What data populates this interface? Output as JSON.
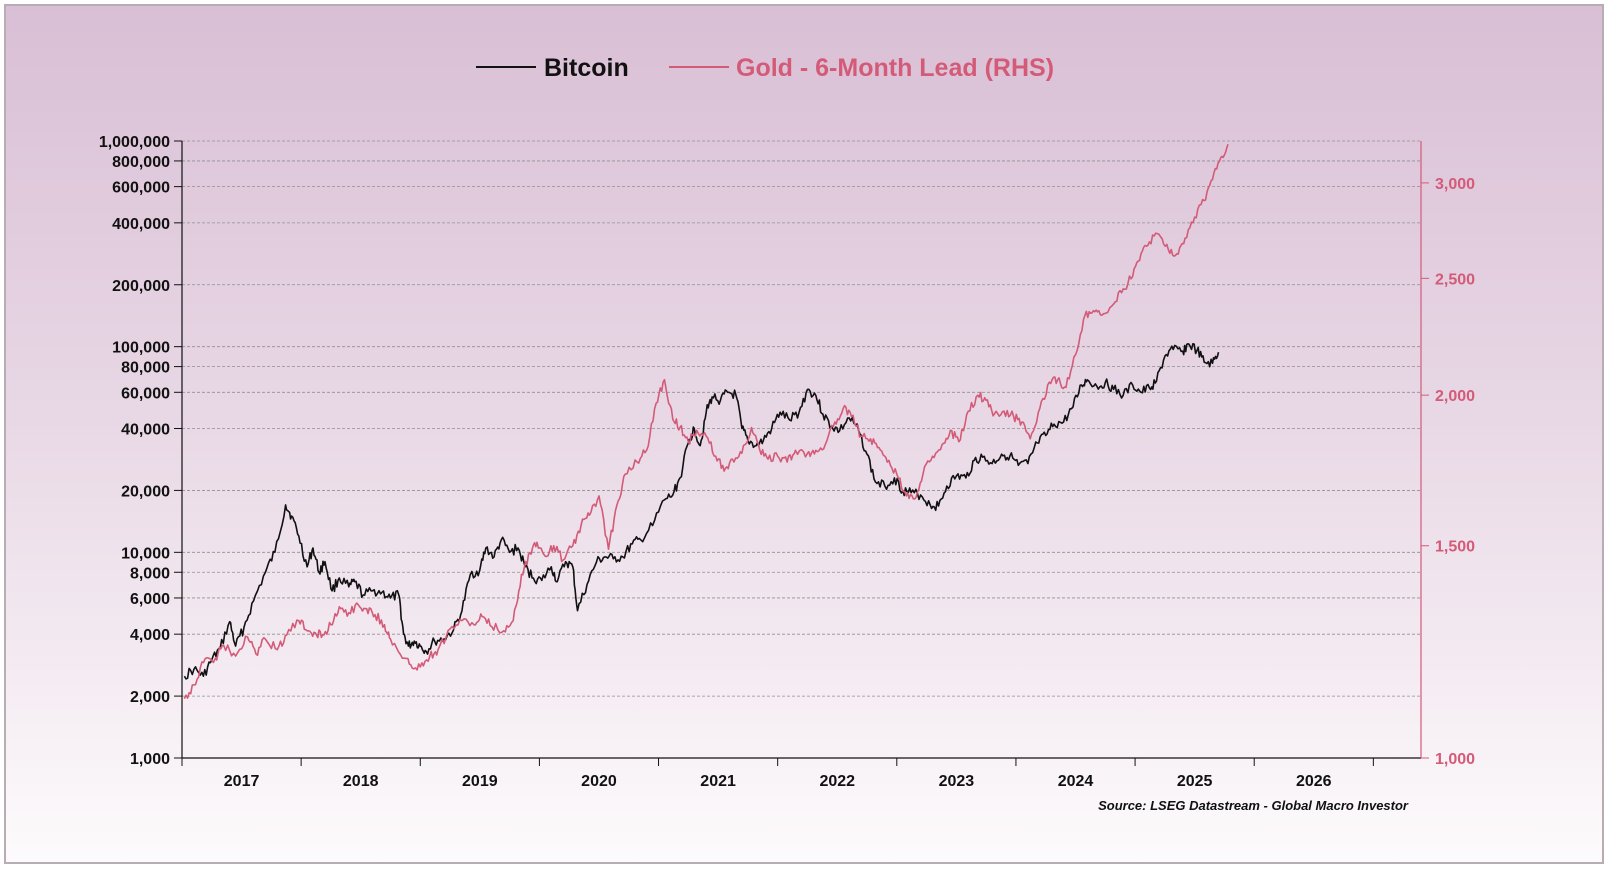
{
  "chart_data": {
    "type": "line",
    "title": "",
    "source": "Source: LSEG Datastream - Global Macro Investor",
    "colors": {
      "bitcoin": "#111111",
      "gold": "#d35b78",
      "grid": "#8f8f8f"
    },
    "x_axis": {
      "range": [
        2016.6,
        2027.0
      ],
      "ticks": [
        2016.6,
        2017.6,
        2018.6,
        2019.6,
        2020.6,
        2021.6,
        2022.6,
        2023.6,
        2024.6,
        2025.6,
        2026.6
      ],
      "labels": [
        {
          "text": "2017",
          "x": 2017.1
        },
        {
          "text": "2018",
          "x": 2018.1
        },
        {
          "text": "2019",
          "x": 2019.1
        },
        {
          "text": "2020",
          "x": 2020.1
        },
        {
          "text": "2021",
          "x": 2021.1
        },
        {
          "text": "2022",
          "x": 2022.1
        },
        {
          "text": "2023",
          "x": 2023.1
        },
        {
          "text": "2024",
          "x": 2024.1
        },
        {
          "text": "2025",
          "x": 2025.1
        },
        {
          "text": "2026",
          "x": 2026.1
        }
      ]
    },
    "y_left": {
      "scale": "log",
      "range": [
        1000,
        1000000
      ],
      "ticks": [
        1000,
        2000,
        4000,
        6000,
        8000,
        10000,
        20000,
        40000,
        60000,
        80000,
        100000,
        200000,
        400000,
        600000,
        800000,
        1000000
      ],
      "labels": [
        "1,000",
        "2,000",
        "4,000",
        "6,000",
        "8,000",
        "10,000",
        "20,000",
        "40,000",
        "60,000",
        "80,000",
        "100,000",
        "200,000",
        "400,000",
        "600,000",
        "800,000",
        "1,000,000"
      ]
    },
    "y_right": {
      "scale": "log",
      "range": [
        1000,
        3250
      ],
      "ticks": [
        1000,
        1500,
        2000,
        2500,
        3000
      ],
      "labels": [
        "1,000",
        "1,500",
        "2,000",
        "2,500",
        "3,000"
      ]
    },
    "series": [
      {
        "name": "Bitcoin",
        "axis": "left",
        "points": [
          [
            2016.62,
            2500
          ],
          [
            2016.7,
            2700
          ],
          [
            2016.78,
            2500
          ],
          [
            2016.85,
            3000
          ],
          [
            2016.92,
            3400
          ],
          [
            2017.0,
            4600
          ],
          [
            2017.05,
            3500
          ],
          [
            2017.12,
            4300
          ],
          [
            2017.2,
            5800
          ],
          [
            2017.3,
            8000
          ],
          [
            2017.38,
            10000
          ],
          [
            2017.47,
            17000
          ],
          [
            2017.52,
            15000
          ],
          [
            2017.58,
            12000
          ],
          [
            2017.65,
            8500
          ],
          [
            2017.7,
            10500
          ],
          [
            2017.75,
            8000
          ],
          [
            2017.8,
            9000
          ],
          [
            2017.86,
            6500
          ],
          [
            2017.92,
            7500
          ],
          [
            2018.0,
            6800
          ],
          [
            2018.05,
            7200
          ],
          [
            2018.12,
            6200
          ],
          [
            2018.2,
            6500
          ],
          [
            2018.28,
            6400
          ],
          [
            2018.35,
            6000
          ],
          [
            2018.42,
            6200
          ],
          [
            2018.46,
            4000
          ],
          [
            2018.5,
            3500
          ],
          [
            2018.55,
            3700
          ],
          [
            2018.6,
            3500
          ],
          [
            2018.65,
            3300
          ],
          [
            2018.72,
            3700
          ],
          [
            2018.8,
            3800
          ],
          [
            2018.88,
            4200
          ],
          [
            2018.95,
            5200
          ],
          [
            2019.02,
            7800
          ],
          [
            2019.1,
            8200
          ],
          [
            2019.15,
            10500
          ],
          [
            2019.22,
            9500
          ],
          [
            2019.28,
            11500
          ],
          [
            2019.35,
            10000
          ],
          [
            2019.42,
            10500
          ],
          [
            2019.48,
            8500
          ],
          [
            2019.55,
            7500
          ],
          [
            2019.62,
            7300
          ],
          [
            2019.7,
            8500
          ],
          [
            2019.75,
            7200
          ],
          [
            2019.82,
            9000
          ],
          [
            2019.88,
            8500
          ],
          [
            2019.92,
            5200
          ],
          [
            2020.0,
            7000
          ],
          [
            2020.08,
            9000
          ],
          [
            2020.15,
            9500
          ],
          [
            2020.22,
            9300
          ],
          [
            2020.3,
            9500
          ],
          [
            2020.38,
            11000
          ],
          [
            2020.45,
            11500
          ],
          [
            2020.55,
            13500
          ],
          [
            2020.65,
            18000
          ],
          [
            2020.72,
            19000
          ],
          [
            2020.78,
            23000
          ],
          [
            2020.85,
            34000
          ],
          [
            2020.9,
            40000
          ],
          [
            2020.95,
            33000
          ],
          [
            2021.0,
            48000
          ],
          [
            2021.05,
            57000
          ],
          [
            2021.12,
            55000
          ],
          [
            2021.18,
            60000
          ],
          [
            2021.25,
            58000
          ],
          [
            2021.3,
            40000
          ],
          [
            2021.35,
            35000
          ],
          [
            2021.42,
            33000
          ],
          [
            2021.48,
            35000
          ],
          [
            2021.55,
            40000
          ],
          [
            2021.62,
            48000
          ],
          [
            2021.7,
            44000
          ],
          [
            2021.78,
            48000
          ],
          [
            2021.85,
            62000
          ],
          [
            2021.92,
            58000
          ],
          [
            2021.98,
            47000
          ],
          [
            2022.05,
            41000
          ],
          [
            2022.12,
            39000
          ],
          [
            2022.2,
            45000
          ],
          [
            2022.28,
            39000
          ],
          [
            2022.35,
            30000
          ],
          [
            2022.42,
            22000
          ],
          [
            2022.5,
            21000
          ],
          [
            2022.58,
            23000
          ],
          [
            2022.65,
            20000
          ],
          [
            2022.72,
            19500
          ],
          [
            2022.8,
            19000
          ],
          [
            2022.88,
            17000
          ],
          [
            2022.95,
            16800
          ],
          [
            2023.02,
            21000
          ],
          [
            2023.1,
            23500
          ],
          [
            2023.18,
            23000
          ],
          [
            2023.25,
            28000
          ],
          [
            2023.32,
            29000
          ],
          [
            2023.4,
            27000
          ],
          [
            2023.48,
            30000
          ],
          [
            2023.55,
            29500
          ],
          [
            2023.62,
            26500
          ],
          [
            2023.7,
            27000
          ],
          [
            2023.78,
            34000
          ],
          [
            2023.85,
            37000
          ],
          [
            2023.92,
            42000
          ],
          [
            2024.0,
            43000
          ],
          [
            2024.08,
            51000
          ],
          [
            2024.15,
            65000
          ],
          [
            2024.2,
            69000
          ],
          [
            2024.28,
            64000
          ],
          [
            2024.35,
            67000
          ],
          [
            2024.42,
            62000
          ],
          [
            2024.5,
            58000
          ],
          [
            2024.58,
            65000
          ],
          [
            2024.65,
            60000
          ],
          [
            2024.72,
            63000
          ],
          [
            2024.78,
            68000
          ],
          [
            2024.85,
            90000
          ],
          [
            2024.92,
            97000
          ],
          [
            2025.0,
            95000
          ],
          [
            2025.05,
            103000
          ],
          [
            2025.12,
            96000
          ],
          [
            2025.18,
            84000
          ],
          [
            2025.25,
            83000
          ],
          [
            2025.3,
            94000
          ]
        ]
      },
      {
        "name": "Gold - 6-Month Lead (RHS)",
        "axis": "right",
        "points": [
          [
            2016.62,
            1120
          ],
          [
            2016.7,
            1150
          ],
          [
            2016.78,
            1200
          ],
          [
            2016.88,
            1210
          ],
          [
            2016.95,
            1240
          ],
          [
            2017.05,
            1215
          ],
          [
            2017.15,
            1260
          ],
          [
            2017.22,
            1220
          ],
          [
            2017.3,
            1255
          ],
          [
            2017.4,
            1230
          ],
          [
            2017.48,
            1265
          ],
          [
            2017.58,
            1300
          ],
          [
            2017.65,
            1275
          ],
          [
            2017.72,
            1270
          ],
          [
            2017.78,
            1265
          ],
          [
            2017.85,
            1290
          ],
          [
            2017.92,
            1335
          ],
          [
            2018.0,
            1320
          ],
          [
            2018.08,
            1340
          ],
          [
            2018.15,
            1330
          ],
          [
            2018.22,
            1315
          ],
          [
            2018.3,
            1290
          ],
          [
            2018.35,
            1255
          ],
          [
            2018.45,
            1210
          ],
          [
            2018.52,
            1195
          ],
          [
            2018.6,
            1190
          ],
          [
            2018.68,
            1215
          ],
          [
            2018.75,
            1230
          ],
          [
            2018.85,
            1280
          ],
          [
            2018.95,
            1300
          ],
          [
            2019.05,
            1290
          ],
          [
            2019.12,
            1310
          ],
          [
            2019.2,
            1285
          ],
          [
            2019.3,
            1275
          ],
          [
            2019.38,
            1300
          ],
          [
            2019.45,
            1420
          ],
          [
            2019.52,
            1480
          ],
          [
            2019.58,
            1510
          ],
          [
            2019.65,
            1470
          ],
          [
            2019.72,
            1500
          ],
          [
            2019.8,
            1460
          ],
          [
            2019.88,
            1500
          ],
          [
            2019.95,
            1560
          ],
          [
            2020.02,
            1590
          ],
          [
            2020.1,
            1650
          ],
          [
            2020.18,
            1490
          ],
          [
            2020.25,
            1620
          ],
          [
            2020.32,
            1720
          ],
          [
            2020.42,
            1760
          ],
          [
            2020.5,
            1800
          ],
          [
            2020.58,
            1970
          ],
          [
            2020.65,
            2060
          ],
          [
            2020.72,
            1910
          ],
          [
            2020.78,
            1880
          ],
          [
            2020.85,
            1830
          ],
          [
            2020.92,
            1870
          ],
          [
            2021.0,
            1850
          ],
          [
            2021.08,
            1780
          ],
          [
            2021.15,
            1730
          ],
          [
            2021.22,
            1770
          ],
          [
            2021.3,
            1790
          ],
          [
            2021.38,
            1880
          ],
          [
            2021.45,
            1800
          ],
          [
            2021.52,
            1770
          ],
          [
            2021.6,
            1780
          ],
          [
            2021.68,
            1760
          ],
          [
            2021.75,
            1800
          ],
          [
            2021.85,
            1790
          ],
          [
            2021.92,
            1800
          ],
          [
            2022.0,
            1820
          ],
          [
            2022.08,
            1900
          ],
          [
            2022.15,
            1950
          ],
          [
            2022.22,
            1920
          ],
          [
            2022.3,
            1850
          ],
          [
            2022.38,
            1840
          ],
          [
            2022.45,
            1810
          ],
          [
            2022.52,
            1760
          ],
          [
            2022.6,
            1720
          ],
          [
            2022.68,
            1650
          ],
          [
            2022.75,
            1640
          ],
          [
            2022.82,
            1720
          ],
          [
            2022.9,
            1780
          ],
          [
            2022.98,
            1820
          ],
          [
            2023.05,
            1870
          ],
          [
            2023.12,
            1830
          ],
          [
            2023.2,
            1940
          ],
          [
            2023.28,
            2000
          ],
          [
            2023.35,
            1980
          ],
          [
            2023.42,
            1930
          ],
          [
            2023.5,
            1940
          ],
          [
            2023.58,
            1920
          ],
          [
            2023.65,
            1900
          ],
          [
            2023.72,
            1840
          ],
          [
            2023.8,
            1950
          ],
          [
            2023.88,
            2050
          ],
          [
            2023.95,
            2060
          ],
          [
            2024.02,
            2030
          ],
          [
            2024.1,
            2160
          ],
          [
            2024.18,
            2330
          ],
          [
            2024.25,
            2350
          ],
          [
            2024.32,
            2330
          ],
          [
            2024.42,
            2380
          ],
          [
            2024.5,
            2450
          ],
          [
            2024.58,
            2510
          ],
          [
            2024.65,
            2620
          ],
          [
            2024.72,
            2680
          ],
          [
            2024.8,
            2720
          ],
          [
            2024.88,
            2640
          ],
          [
            2024.95,
            2620
          ],
          [
            2025.02,
            2700
          ],
          [
            2025.1,
            2810
          ],
          [
            2025.18,
            2900
          ],
          [
            2025.25,
            3020
          ],
          [
            2025.32,
            3150
          ],
          [
            2025.38,
            3230
          ]
        ]
      }
    ],
    "legend": [
      {
        "label": "Bitcoin",
        "color": "#111111"
      },
      {
        "label": "Gold - 6-Month Lead (RHS)",
        "color": "#d35b78"
      }
    ]
  }
}
